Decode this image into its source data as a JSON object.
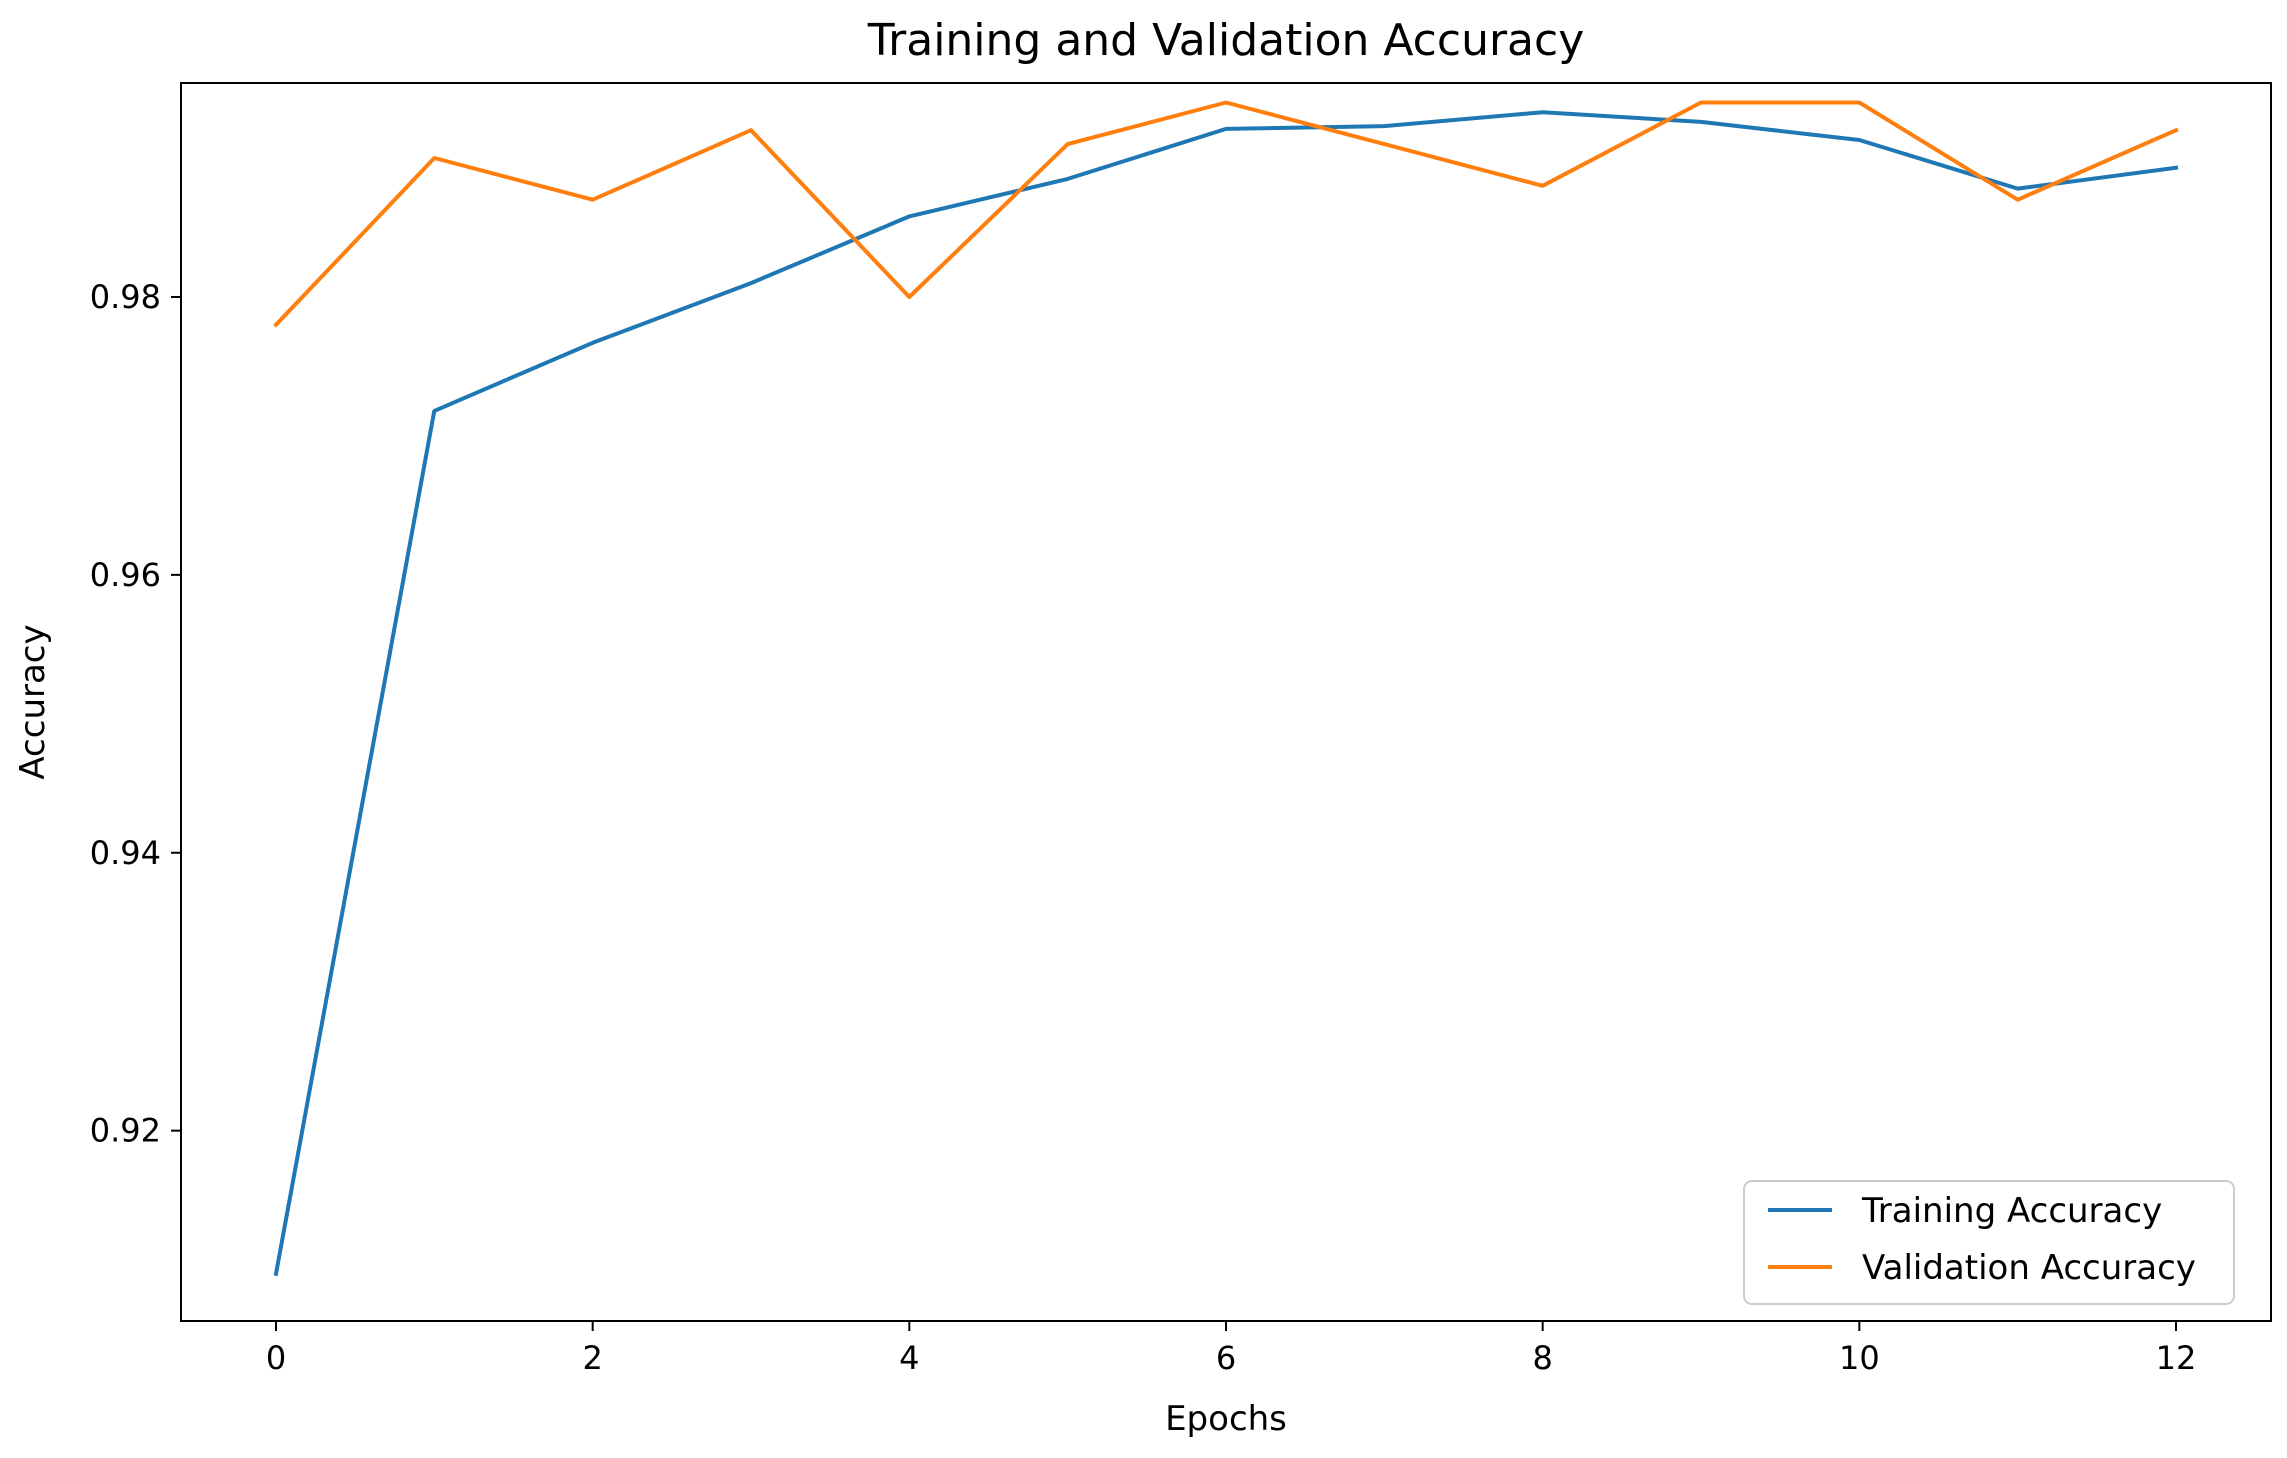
{
  "chart_data": {
    "type": "line",
    "title": "Training and Validation Accuracy",
    "xlabel": "Epochs",
    "ylabel": "Accuracy",
    "x": [
      0,
      1,
      2,
      3,
      4,
      5,
      6,
      7,
      8,
      9,
      10,
      11,
      12
    ],
    "xlim": [
      -0.6,
      12.6
    ],
    "ylim": [
      0.9063,
      0.9954
    ],
    "x_ticks": [
      "0",
      "2",
      "4",
      "6",
      "8",
      "10",
      "12"
    ],
    "y_ticks": [
      "0.92",
      "0.94",
      "0.96",
      "0.98"
    ],
    "grid": false,
    "legend_position": "lower-right",
    "series": [
      {
        "name": "Training Accuracy",
        "color": "#1f77b4",
        "values": [
          0.9097,
          0.9718,
          0.9767,
          0.981,
          0.9858,
          0.9885,
          0.9921,
          0.9923,
          0.9933,
          0.9926,
          0.9913,
          0.9878,
          0.9893
        ]
      },
      {
        "name": "Validation Accuracy",
        "color": "#ff7f0e",
        "values": [
          0.978,
          0.99,
          0.987,
          0.992,
          0.98,
          0.991,
          0.994,
          0.991,
          0.988,
          0.994,
          0.994,
          0.987,
          0.992
        ]
      }
    ]
  }
}
